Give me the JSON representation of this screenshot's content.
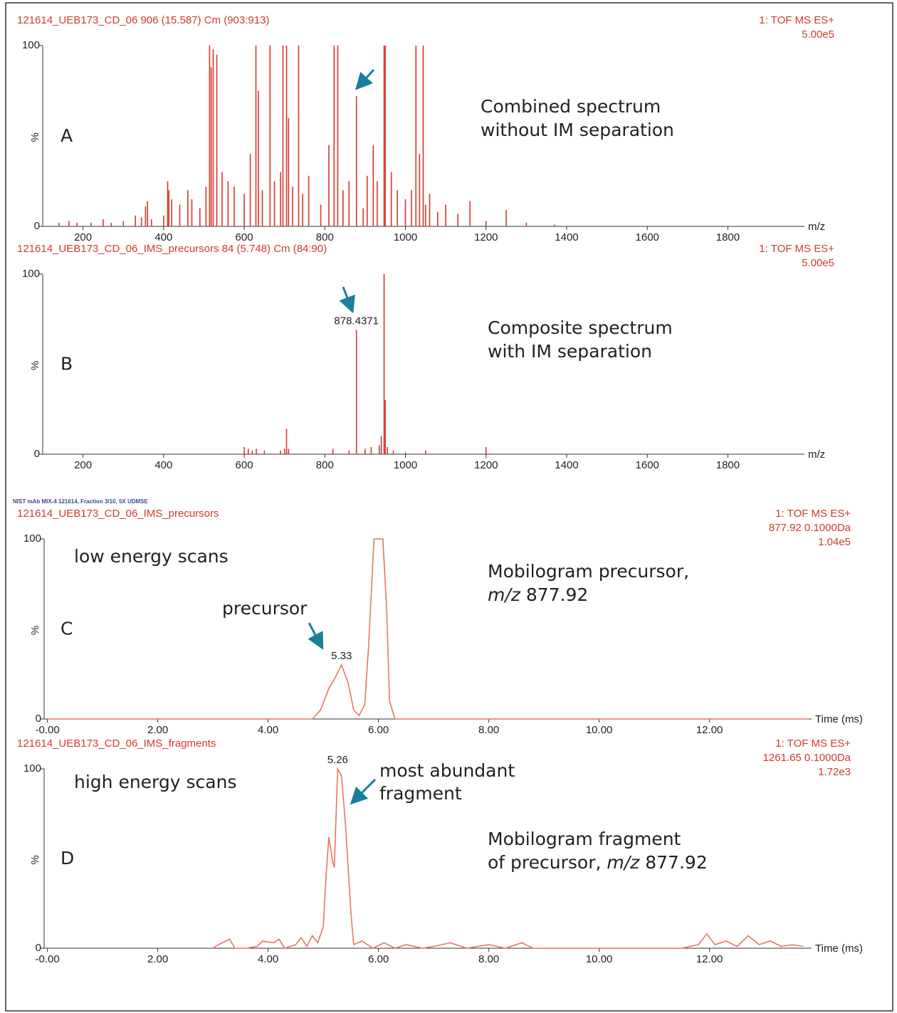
{
  "chart_data": [
    {
      "type": "stem",
      "header_left": "121614_UEB173_CD_06 906 (15.587) Cm (903:913)",
      "header_right": [
        "1: TOF MS ES+",
        "5.00e5"
      ],
      "panel_label": "A",
      "annotation": [
        [
          "Combined spectrum"
        ],
        [
          "without IM separation"
        ]
      ],
      "ylabel": "%",
      "xlabel": "m/z",
      "color": "#d9352a",
      "x": [
        140,
        165,
        185,
        220,
        250,
        270,
        300,
        330,
        345,
        355,
        360,
        370,
        400,
        410,
        413,
        420,
        440,
        460,
        470,
        490,
        505,
        514,
        518,
        523,
        532,
        545,
        560,
        575,
        600,
        615,
        629,
        635,
        645,
        664,
        675,
        690,
        696,
        705,
        710,
        720,
        735,
        745,
        760,
        790,
        810,
        823,
        832,
        845,
        860,
        878.44,
        895,
        905,
        920,
        930,
        947,
        950,
        965,
        980,
        1000,
        1015,
        1026,
        1035,
        1044,
        1050,
        1060,
        1080,
        1100,
        1130,
        1160,
        1200,
        1250,
        1300,
        1370
      ],
      "values": [
        2,
        3,
        2,
        2,
        4,
        2,
        3,
        6,
        5,
        11,
        14,
        4,
        6,
        25,
        20,
        15,
        12,
        20,
        15,
        10,
        22,
        100,
        88,
        98,
        95,
        30,
        25,
        22,
        18,
        40,
        100,
        75,
        20,
        100,
        25,
        30,
        100,
        100,
        60,
        22,
        100,
        18,
        28,
        12,
        45,
        100,
        100,
        20,
        25,
        72,
        10,
        28,
        45,
        25,
        100,
        100,
        30,
        20,
        15,
        20,
        100,
        40,
        100,
        12,
        18,
        8,
        12,
        7,
        14,
        3,
        9,
        2,
        1
      ],
      "xlim": [
        100,
        1990
      ],
      "ylim": [
        0,
        100
      ],
      "xticks": [
        200,
        400,
        600,
        800,
        1000,
        1200,
        1400,
        1600,
        1800
      ],
      "yticks": [
        0,
        100
      ]
    },
    {
      "type": "stem",
      "header_left": "121614_UEB173_CD_06_IMS_precursors 84 (5.748) Cm (84:90)",
      "header_right": [
        "1: TOF MS ES+",
        "5.00e5"
      ],
      "panel_label": "B",
      "annotation": [
        [
          "Composite spectrum"
        ],
        [
          "with IM separation"
        ]
      ],
      "ylabel": "%",
      "xlabel": "m/z",
      "color": "#d9352a",
      "x": [
        600,
        610,
        620,
        630,
        650,
        690,
        700,
        705,
        710,
        820,
        860,
        878.4371,
        900,
        915,
        935,
        940,
        947,
        950,
        955,
        970,
        1000,
        1050,
        1200
      ],
      "values": [
        4,
        3,
        2,
        3,
        2,
        2,
        3,
        14,
        3,
        3,
        2,
        69,
        3,
        4,
        5,
        10,
        100,
        30,
        4,
        2,
        1,
        2,
        4
      ],
      "peak_labels": [
        878.4371
      ],
      "xlim": [
        100,
        1990
      ],
      "ylim": [
        0,
        100
      ],
      "xticks": [
        200,
        400,
        600,
        800,
        1000,
        1200,
        1400,
        1600,
        1800
      ],
      "yticks": [
        0,
        100
      ]
    },
    {
      "type": "line",
      "source_note": "NIST mAb MIX-4 121614, Fraction 3/10, 5X UDMSE",
      "header_left": "121614_UEB173_CD_06_IMS_precursors",
      "header_right": [
        "1: TOF MS ES+",
        "877.92 0.1000Da",
        "1.04e5"
      ],
      "panel_label": "C",
      "annotation": [
        [
          "Mobilogram precursor,"
        ],
        [
          {
            "text": "m/z",
            "italic": true
          },
          " 877.92"
        ]
      ],
      "scan_label": "low energy scans",
      "callout": [
        "precursor"
      ],
      "ylabel": "%",
      "xlabel": "Time (ms)",
      "color": "#e5775f",
      "x": [
        0,
        4.8,
        4.95,
        5.1,
        5.2,
        5.33,
        5.45,
        5.55,
        5.65,
        5.75,
        5.82,
        5.92,
        6.08,
        6.15,
        6.2,
        6.3,
        13.8
      ],
      "values": [
        0,
        0,
        5,
        17,
        22,
        30,
        20,
        5,
        2,
        8,
        40,
        100,
        100,
        60,
        10,
        0,
        0
      ],
      "peak_labels": [
        5.33
      ],
      "xlim": [
        -0.06,
        13.85
      ],
      "ylim": [
        0,
        100
      ],
      "xticks": [
        {
          "value": 0,
          "label": "-0.00"
        },
        {
          "value": 2,
          "label": "2.00"
        },
        {
          "value": 4,
          "label": "4.00"
        },
        {
          "value": 6,
          "label": "6.00"
        },
        {
          "value": 8,
          "label": "8.00"
        },
        {
          "value": 10,
          "label": "10.00"
        },
        {
          "value": 12,
          "label": "12.00"
        }
      ],
      "yticks": [
        0,
        100
      ]
    },
    {
      "type": "line",
      "header_left": "121614_UEB173_CD_06_IMS_fragments",
      "header_right": [
        "1: TOF MS ES+",
        "1261.65 0.1000Da",
        "1.72e3"
      ],
      "panel_label": "D",
      "annotation": [
        [
          "Mobilogram fragment"
        ],
        [
          "of precursor, ",
          {
            "text": "m/z",
            "italic": true
          },
          " 877.92"
        ]
      ],
      "scan_label": "high energy scans",
      "callout": [
        "most abundant",
        "fragment"
      ],
      "ylabel": "%",
      "xlabel": "Time (ms)",
      "color": "#e5775f",
      "x": [
        3.0,
        3.1,
        3.3,
        3.4,
        3.6,
        3.8,
        3.9,
        4.1,
        4.2,
        4.3,
        4.5,
        4.6,
        4.7,
        4.8,
        4.9,
        5.0,
        5.05,
        5.1,
        5.17,
        5.2,
        5.26,
        5.33,
        5.4,
        5.5,
        5.55,
        5.7,
        5.9,
        6.1,
        6.3,
        6.5,
        6.8,
        7.0,
        7.3,
        7.6,
        8.0,
        8.3,
        8.6,
        8.8,
        9.5,
        10.5,
        11.5,
        11.8,
        11.95,
        12.1,
        12.3,
        12.5,
        12.7,
        12.9,
        13.1,
        13.3,
        13.5,
        13.7
      ],
      "values": [
        0,
        2,
        5,
        0,
        0,
        1,
        4,
        3,
        5,
        0,
        2,
        6,
        1,
        7,
        3,
        12,
        40,
        62,
        48,
        45,
        100,
        96,
        70,
        20,
        2,
        4,
        0,
        3,
        0,
        2,
        0,
        1,
        3,
        0,
        2,
        0,
        3,
        0,
        0,
        0,
        0,
        2,
        8,
        2,
        4,
        1,
        7,
        2,
        4,
        1,
        2,
        1
      ],
      "peak_labels": [
        5.26
      ],
      "xlim": [
        -0.06,
        13.85
      ],
      "ylim": [
        0,
        100
      ],
      "xticks": [
        {
          "value": 0,
          "label": "-0.00"
        },
        {
          "value": 2,
          "label": "2.00"
        },
        {
          "value": 4,
          "label": "4.00"
        },
        {
          "value": 6,
          "label": "6.00"
        },
        {
          "value": 8,
          "label": "8.00"
        },
        {
          "value": 10,
          "label": "10.00"
        },
        {
          "value": 12,
          "label": "12.00"
        }
      ],
      "yticks": [
        0,
        100
      ]
    }
  ]
}
